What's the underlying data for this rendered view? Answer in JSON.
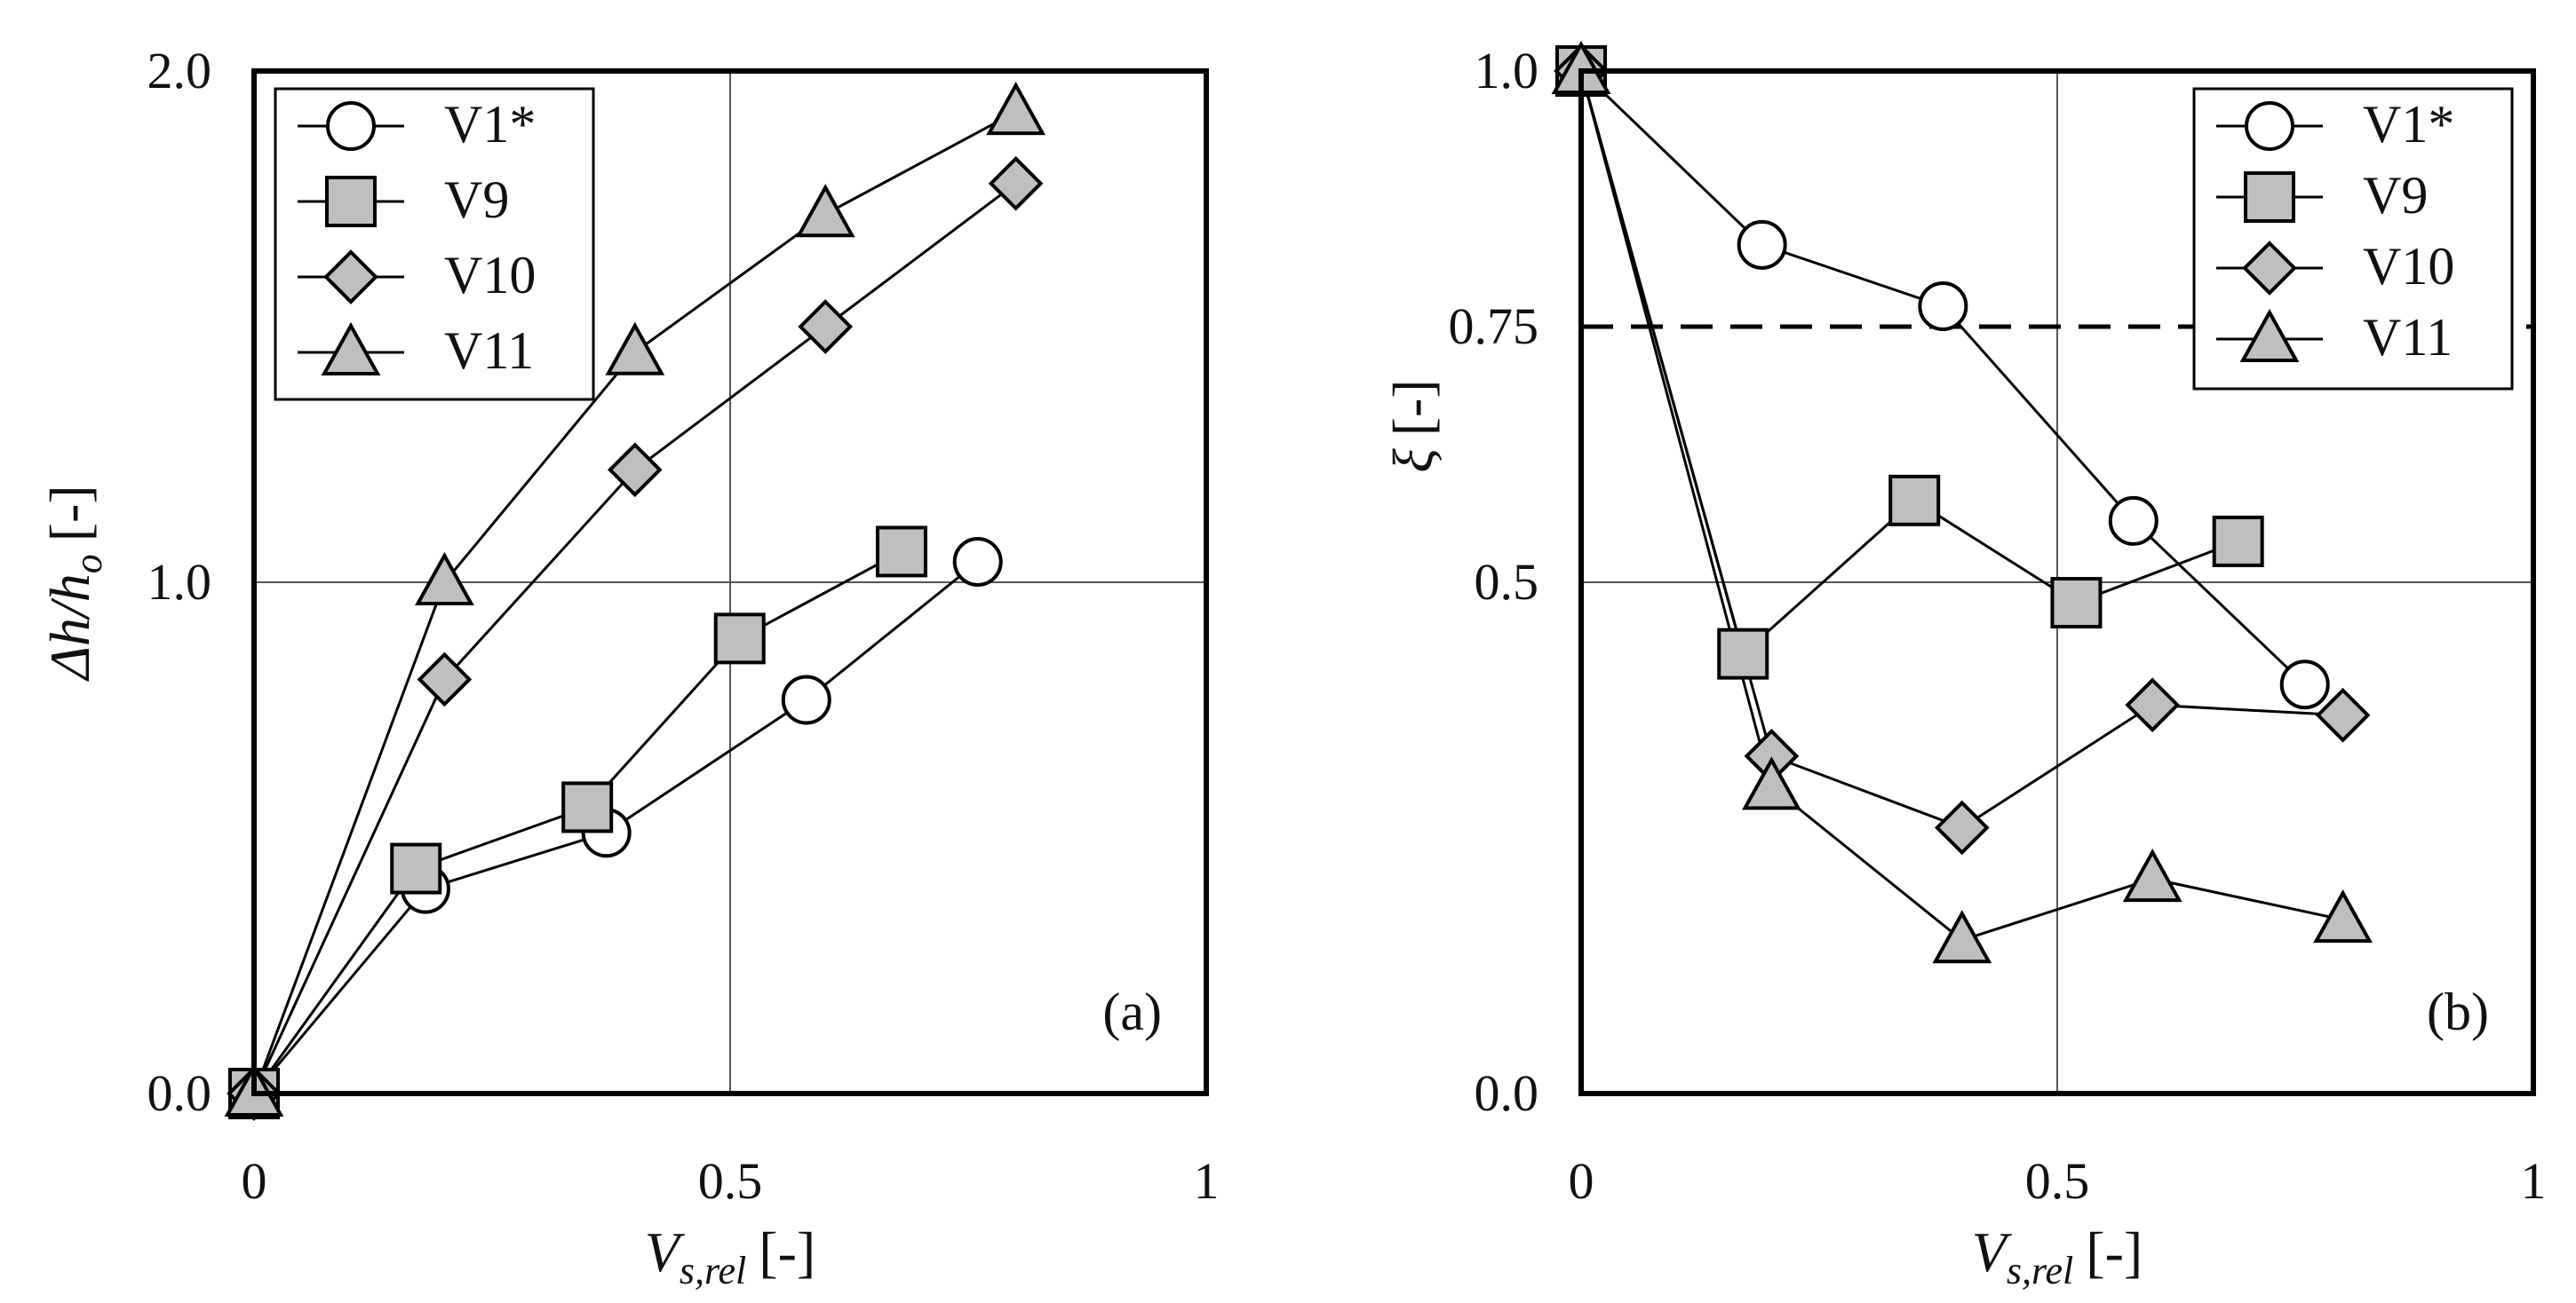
{
  "chart_data": [
    {
      "panel": "(a)",
      "type": "line",
      "markers": true,
      "ylabel": {
        "main": "Δh/h",
        "sub": "o",
        "unit": "[-]"
      },
      "xlabel": {
        "main": "V",
        "sub": "s,rel",
        "unit": "[-]"
      },
      "xlim": [
        0,
        1
      ],
      "ylim": [
        0,
        2
      ],
      "xticks": [
        "0",
        "0.5",
        "1"
      ],
      "yticks": [
        "0.0",
        "1.0",
        "2.0"
      ],
      "grid": true,
      "legend_position": "top-left",
      "series": [
        {
          "name": "V1*",
          "marker": "circle",
          "fill": "#ffffff",
          "x": [
            0,
            0.18,
            0.37,
            0.58,
            0.76
          ],
          "y": [
            0,
            0.4,
            0.51,
            0.77,
            1.04
          ]
        },
        {
          "name": "V9",
          "marker": "square",
          "fill": "#bfbfbf",
          "x": [
            0,
            0.17,
            0.35,
            0.51,
            0.68
          ],
          "y": [
            0,
            0.44,
            0.56,
            0.89,
            1.06
          ]
        },
        {
          "name": "V10",
          "marker": "diamond",
          "fill": "#bfbfbf",
          "x": [
            0,
            0.2,
            0.4,
            0.6,
            0.8
          ],
          "y": [
            0,
            0.81,
            1.22,
            1.5,
            1.78
          ]
        },
        {
          "name": "V11",
          "marker": "triangle",
          "fill": "#bfbfbf",
          "x": [
            0,
            0.2,
            0.4,
            0.6,
            0.8
          ],
          "y": [
            0,
            1.0,
            1.45,
            1.72,
            1.92
          ]
        }
      ]
    },
    {
      "panel": "(b)",
      "type": "line",
      "markers": true,
      "ylabel": {
        "main": "ξ",
        "sub": "",
        "unit": "[-]"
      },
      "xlabel": {
        "main": "V",
        "sub": "s,rel",
        "unit": "[-]"
      },
      "xlim": [
        0,
        1
      ],
      "ylim": [
        0,
        1
      ],
      "xticks": [
        "0",
        "0.5",
        "1"
      ],
      "yticks": [
        "0.0",
        "0.5",
        "0.75",
        "1.0"
      ],
      "grid": true,
      "reference_line": {
        "y": 0.75,
        "style": "dashed"
      },
      "legend_position": "top-right",
      "series": [
        {
          "name": "V1*",
          "marker": "circle",
          "fill": "#ffffff",
          "x": [
            0,
            0.19,
            0.38,
            0.58,
            0.76
          ],
          "y": [
            1.0,
            0.83,
            0.77,
            0.56,
            0.4
          ]
        },
        {
          "name": "V9",
          "marker": "square",
          "fill": "#bfbfbf",
          "x": [
            0,
            0.17,
            0.35,
            0.52,
            0.69
          ],
          "y": [
            1.0,
            0.43,
            0.58,
            0.48,
            0.54
          ]
        },
        {
          "name": "V10",
          "marker": "diamond",
          "fill": "#bfbfbf",
          "x": [
            0,
            0.2,
            0.4,
            0.6,
            0.8
          ],
          "y": [
            1.0,
            0.33,
            0.26,
            0.38,
            0.37
          ]
        },
        {
          "name": "V11",
          "marker": "triangle",
          "fill": "#bfbfbf",
          "x": [
            0,
            0.2,
            0.4,
            0.6,
            0.8
          ],
          "y": [
            1.0,
            0.3,
            0.15,
            0.21,
            0.17
          ]
        }
      ]
    }
  ]
}
